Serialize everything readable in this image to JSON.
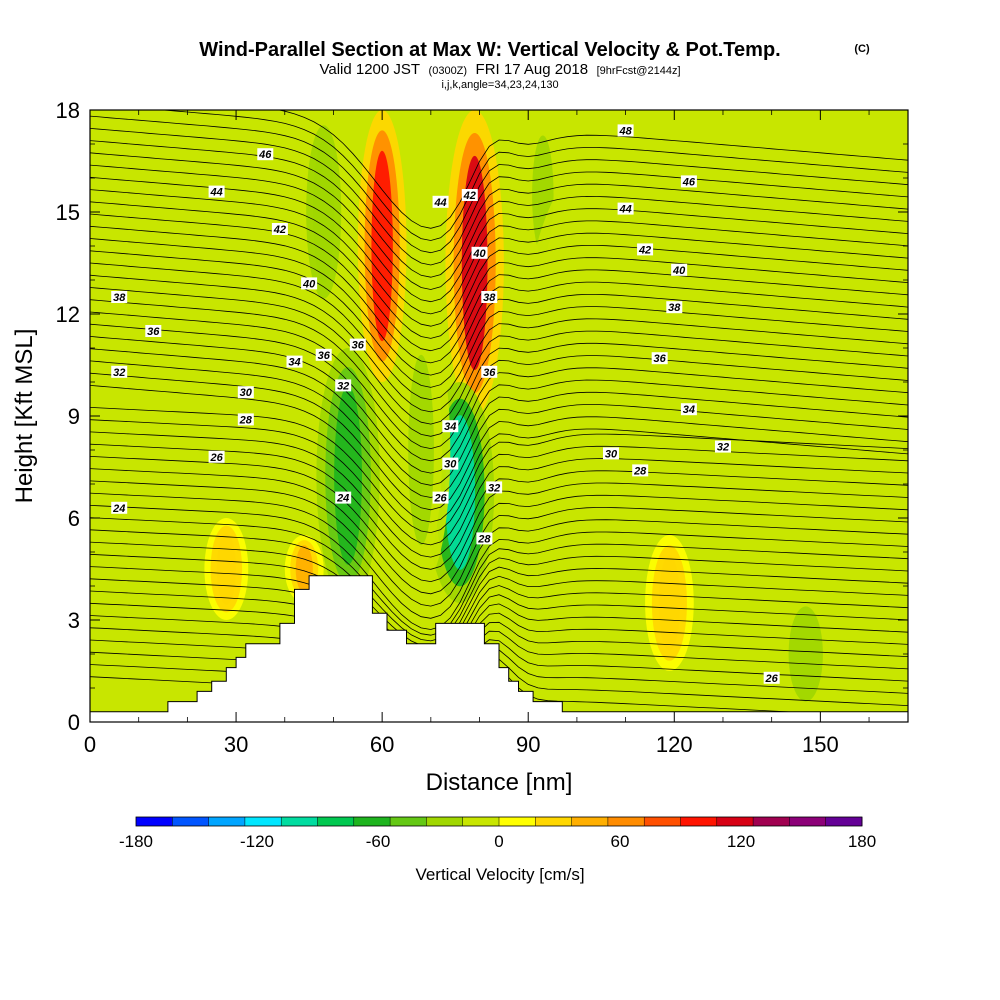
{
  "header": {
    "title": "Wind-Parallel Section at Max W: Vertical Velocity & Pot.Temp.",
    "copyright": "(C)",
    "valid_prefix": "Valid 1200 JST",
    "utc_time": "(0300Z)",
    "valid_date": "FRI 17 Aug 2018",
    "forecast_info": "[9hrFcst@2144z]",
    "grid_info": "i,j,k,angle=34,23,24,130"
  },
  "chart_data": {
    "type": "heatmap",
    "title": "Wind-Parallel Section at Max W: Vertical Velocity & Pot.Temp.",
    "xlabel": "Distance [nm]",
    "ylabel": "Height [Kft MSL]",
    "xlim": [
      0,
      168
    ],
    "ylim": [
      0,
      18
    ],
    "x_ticks": [
      "0",
      "30",
      "60",
      "90",
      "120",
      "150"
    ],
    "y_ticks": [
      "0",
      "3",
      "6",
      "9",
      "12",
      "15",
      "18"
    ],
    "colorbar": {
      "title": "Vertical Velocity [cm/s]",
      "range": [
        -180,
        180
      ],
      "tick_labels": [
        "-180",
        "-120",
        "-60",
        "0",
        "60",
        "120",
        "180"
      ],
      "colors": [
        "#0000ff",
        "#0055ff",
        "#00a5ff",
        "#00e6ff",
        "#00dca0",
        "#00c850",
        "#1eb41e",
        "#64c814",
        "#a0d700",
        "#c8e600",
        "#ffff00",
        "#ffd700",
        "#ffaf00",
        "#ff8c00",
        "#ff5000",
        "#ff1400",
        "#d70014",
        "#a00050",
        "#8c0078",
        "#640096"
      ]
    },
    "velocity_features": [
      {
        "x_center": 60,
        "x_range": [
          55,
          65
        ],
        "z_range": [
          10,
          18
        ],
        "w": 120
      },
      {
        "x_center": 79,
        "x_range": [
          74,
          86
        ],
        "z_range": [
          9,
          18
        ],
        "w": 130
      },
      {
        "x_center": 53,
        "x_range": [
          47,
          60
        ],
        "z_range": [
          3.5,
          11
        ],
        "w": -80
      },
      {
        "x_center": 76,
        "x_range": [
          70,
          84
        ],
        "z_range": [
          3.5,
          10
        ],
        "w": -110
      },
      {
        "x_center": 68,
        "x_range": [
          62,
          74
        ],
        "z_range": [
          4,
          12
        ],
        "w": -30
      },
      {
        "x_center": 48,
        "x_range": [
          42,
          52
        ],
        "z_range": [
          12,
          18
        ],
        "w": -40
      },
      {
        "x_center": 93,
        "x_range": [
          88,
          98
        ],
        "z_range": [
          13,
          18
        ],
        "w": -30
      },
      {
        "x_center": 120,
        "x_range": [
          108,
          168
        ],
        "z_range": [
          6,
          18
        ],
        "w": -20
      },
      {
        "x_center": 28,
        "x_range": [
          24,
          33
        ],
        "z_range": [
          3,
          6
        ],
        "w": 40
      },
      {
        "x_center": 44,
        "x_range": [
          40,
          48
        ],
        "z_range": [
          3.5,
          5.5
        ],
        "w": 50
      },
      {
        "x_center": 119,
        "x_range": [
          114,
          124
        ],
        "z_range": [
          1.5,
          5.5
        ],
        "w": 40
      },
      {
        "x_center": 147,
        "x_range": [
          140,
          156
        ],
        "z_range": [
          0,
          4
        ],
        "w": -25
      }
    ],
    "isentropes": {
      "label": "Potential Temperature",
      "contour_labels": [
        {
          "text": "48",
          "x": 110,
          "y": 17.4
        },
        {
          "text": "46",
          "x": 36,
          "y": 16.7
        },
        {
          "text": "46",
          "x": 123,
          "y": 15.9
        },
        {
          "text": "44",
          "x": 26,
          "y": 15.6
        },
        {
          "text": "44",
          "x": 72,
          "y": 15.3
        },
        {
          "text": "44",
          "x": 110,
          "y": 15.1
        },
        {
          "text": "42",
          "x": 78,
          "y": 15.5
        },
        {
          "text": "42",
          "x": 39,
          "y": 14.5
        },
        {
          "text": "42",
          "x": 114,
          "y": 13.9
        },
        {
          "text": "40",
          "x": 80,
          "y": 13.8
        },
        {
          "text": "40",
          "x": 121,
          "y": 13.3
        },
        {
          "text": "40",
          "x": 45,
          "y": 12.9
        },
        {
          "text": "38",
          "x": 6,
          "y": 12.5
        },
        {
          "text": "38",
          "x": 82,
          "y": 12.5
        },
        {
          "text": "38",
          "x": 120,
          "y": 12.2
        },
        {
          "text": "36",
          "x": 13,
          "y": 11.5
        },
        {
          "text": "36",
          "x": 55,
          "y": 11.1
        },
        {
          "text": "36",
          "x": 48,
          "y": 10.8
        },
        {
          "text": "36",
          "x": 117,
          "y": 10.7
        },
        {
          "text": "36",
          "x": 82,
          "y": 10.3
        },
        {
          "text": "34",
          "x": 42,
          "y": 10.6
        },
        {
          "text": "34",
          "x": 74,
          "y": 8.7
        },
        {
          "text": "34",
          "x": 123,
          "y": 9.2
        },
        {
          "text": "32",
          "x": 6,
          "y": 10.3
        },
        {
          "text": "32",
          "x": 52,
          "y": 9.9
        },
        {
          "text": "32",
          "x": 130,
          "y": 8.1
        },
        {
          "text": "32",
          "x": 83,
          "y": 6.9
        },
        {
          "text": "30",
          "x": 32,
          "y": 9.7
        },
        {
          "text": "30",
          "x": 74,
          "y": 7.6
        },
        {
          "text": "30",
          "x": 107,
          "y": 7.9
        },
        {
          "text": "28",
          "x": 32,
          "y": 8.9
        },
        {
          "text": "28",
          "x": 113,
          "y": 7.4
        },
        {
          "text": "28",
          "x": 81,
          "y": 5.4
        },
        {
          "text": "26",
          "x": 26,
          "y": 7.8
        },
        {
          "text": "26",
          "x": 72,
          "y": 6.6
        },
        {
          "text": "24",
          "x": 6,
          "y": 6.3
        },
        {
          "text": "24",
          "x": 52,
          "y": 6.6
        },
        {
          "text": "26",
          "x": 140,
          "y": 1.3
        }
      ]
    },
    "terrain_profile_kft": [
      {
        "x": 0,
        "z": 0.3
      },
      {
        "x": 16,
        "z": 0.3
      },
      {
        "x": 16,
        "z": 0.6
      },
      {
        "x": 22,
        "z": 0.6
      },
      {
        "x": 22,
        "z": 0.9
      },
      {
        "x": 25,
        "z": 0.9
      },
      {
        "x": 25,
        "z": 1.2
      },
      {
        "x": 28,
        "z": 1.2
      },
      {
        "x": 28,
        "z": 1.6
      },
      {
        "x": 30,
        "z": 1.6
      },
      {
        "x": 30,
        "z": 1.9
      },
      {
        "x": 32,
        "z": 1.9
      },
      {
        "x": 32,
        "z": 2.3
      },
      {
        "x": 39,
        "z": 2.3
      },
      {
        "x": 39,
        "z": 2.9
      },
      {
        "x": 42,
        "z": 2.9
      },
      {
        "x": 42,
        "z": 3.9
      },
      {
        "x": 45,
        "z": 3.9
      },
      {
        "x": 45,
        "z": 4.3
      },
      {
        "x": 58,
        "z": 4.3
      },
      {
        "x": 58,
        "z": 3.2
      },
      {
        "x": 61,
        "z": 3.2
      },
      {
        "x": 61,
        "z": 2.7
      },
      {
        "x": 65,
        "z": 2.7
      },
      {
        "x": 65,
        "z": 2.3
      },
      {
        "x": 71,
        "z": 2.3
      },
      {
        "x": 71,
        "z": 2.9
      },
      {
        "x": 81,
        "z": 2.9
      },
      {
        "x": 81,
        "z": 2.3
      },
      {
        "x": 84,
        "z": 2.3
      },
      {
        "x": 84,
        "z": 1.6
      },
      {
        "x": 86,
        "z": 1.6
      },
      {
        "x": 86,
        "z": 1.2
      },
      {
        "x": 88,
        "z": 1.2
      },
      {
        "x": 88,
        "z": 0.9
      },
      {
        "x": 91,
        "z": 0.9
      },
      {
        "x": 91,
        "z": 0.6
      },
      {
        "x": 97,
        "z": 0.6
      },
      {
        "x": 97,
        "z": 0.3
      },
      {
        "x": 168,
        "z": 0.3
      }
    ]
  }
}
